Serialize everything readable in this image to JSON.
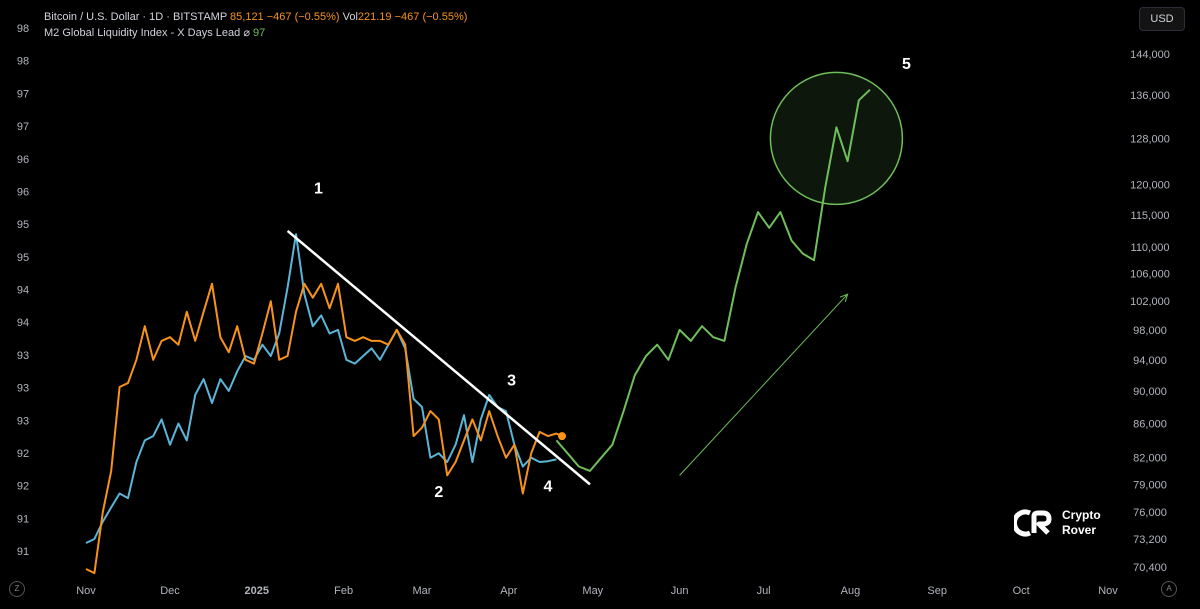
{
  "header": {
    "symbol": "Bitcoin / U.S. Dollar · 1D · BITSTAMP",
    "price": "85,121",
    "change": "−467 (−0.55%)",
    "vol_label": "Vol",
    "vol_value": "221.19",
    "vol_change": "−467 (−0.55%)",
    "indicator": "M2 Global Liquidity Index - X Days Lead",
    "indicator_symbol": "⌀",
    "indicator_value": "97"
  },
  "currency_button": "USD",
  "logo": {
    "line1": "Crypto",
    "line2": "Rover"
  },
  "corner_left": "Z",
  "corner_right": "A",
  "colors": {
    "btc": "#f7931a",
    "btc_blue": "#5bb5d9",
    "m2_projection": "#6fbf5a",
    "annotation": "#ffffff"
  },
  "chart_data": {
    "type": "line",
    "x_ticks": [
      "Nov",
      "Dec",
      "2025",
      "Feb",
      "Mar",
      "Apr",
      "May",
      "Jun",
      "Jul",
      "Aug",
      "Sep",
      "Oct",
      "Nov"
    ],
    "left_axis_ticks": [
      "98",
      "98",
      "97",
      "97",
      "96",
      "96",
      "95",
      "95",
      "94",
      "94",
      "93",
      "93",
      "93",
      "92",
      "92",
      "91",
      "91"
    ],
    "right_axis_ticks": [
      "144,000",
      "136,000",
      "128,000",
      "120,000",
      "115,000",
      "110,000",
      "106,000",
      "102,000",
      "98,000",
      "94,000",
      "90,000",
      "86,000",
      "82,000",
      "79,000",
      "76,000",
      "73,200",
      "70,400"
    ],
    "right_axis_scale": "log",
    "wave_labels": [
      "1",
      "2",
      "3",
      "4",
      "5"
    ],
    "series": [
      {
        "name": "Bitcoin / U.S. Dollar",
        "color": "#f7931a",
        "x": [
          "2024-11-01",
          "2024-11-04",
          "2024-11-07",
          "2024-11-10",
          "2024-11-13",
          "2024-11-16",
          "2024-11-19",
          "2024-11-22",
          "2024-11-25",
          "2024-11-28",
          "2024-12-01",
          "2024-12-04",
          "2024-12-07",
          "2024-12-10",
          "2024-12-13",
          "2024-12-16",
          "2024-12-19",
          "2024-12-22",
          "2024-12-25",
          "2024-12-28",
          "2024-12-31",
          "2025-01-03",
          "2025-01-06",
          "2025-01-09",
          "2025-01-12",
          "2025-01-15",
          "2025-01-18",
          "2025-01-21",
          "2025-01-24",
          "2025-01-27",
          "2025-01-30",
          "2025-02-02",
          "2025-02-05",
          "2025-02-08",
          "2025-02-11",
          "2025-02-14",
          "2025-02-17",
          "2025-02-20",
          "2025-02-23",
          "2025-02-26",
          "2025-03-01",
          "2025-03-04",
          "2025-03-07",
          "2025-03-10",
          "2025-03-13",
          "2025-03-16",
          "2025-03-19",
          "2025-03-22",
          "2025-03-25",
          "2025-03-28",
          "2025-03-31",
          "2025-04-03",
          "2025-04-06",
          "2025-04-09",
          "2025-04-12",
          "2025-04-15",
          "2025-04-18",
          "2025-04-20"
        ],
        "y": [
          70200,
          69800,
          76000,
          80500,
          90500,
          91000,
          94000,
          98500,
          94000,
          96500,
          97000,
          96000,
          100500,
          96500,
          100500,
          104500,
          97000,
          95000,
          98500,
          94000,
          93500,
          97500,
          102000,
          94000,
          94500,
          100500,
          104500,
          102500,
          104500,
          101000,
          104500,
          97000,
          96500,
          97000,
          96500,
          96500,
          96000,
          98000,
          96000,
          84500,
          85500,
          87500,
          86500,
          80000,
          81500,
          84000,
          86500,
          84000,
          87500,
          84500,
          82000,
          83500,
          78000,
          82500,
          85000,
          84500,
          84800,
          84500
        ]
      },
      {
        "name": "M2 Global Liquidity Index - X Days Lead",
        "color": "#5bb5d9",
        "x": [
          "2024-11-01",
          "2024-11-04",
          "2024-11-07",
          "2024-11-10",
          "2024-11-13",
          "2024-11-16",
          "2024-11-19",
          "2024-11-22",
          "2024-11-25",
          "2024-11-28",
          "2024-12-01",
          "2024-12-04",
          "2024-12-07",
          "2024-12-10",
          "2024-12-13",
          "2024-12-16",
          "2024-12-19",
          "2024-12-22",
          "2024-12-25",
          "2024-12-28",
          "2024-12-31",
          "2025-01-03",
          "2025-01-06",
          "2025-01-09",
          "2025-01-12",
          "2025-01-15",
          "2025-01-18",
          "2025-01-21",
          "2025-01-24",
          "2025-01-27",
          "2025-01-30",
          "2025-02-02",
          "2025-02-05",
          "2025-02-08",
          "2025-02-11",
          "2025-02-14",
          "2025-02-17",
          "2025-02-20",
          "2025-02-23",
          "2025-02-26",
          "2025-03-01",
          "2025-03-04",
          "2025-03-07",
          "2025-03-10",
          "2025-03-13",
          "2025-03-16",
          "2025-03-19",
          "2025-03-22",
          "2025-03-25",
          "2025-03-28",
          "2025-03-31",
          "2025-04-03",
          "2025-04-06",
          "2025-04-09",
          "2025-04-12",
          "2025-04-15",
          "2025-04-18"
        ],
        "y": [
          72800,
          73200,
          75000,
          76500,
          78000,
          77500,
          81500,
          84000,
          84500,
          86500,
          83500,
          86000,
          84000,
          89500,
          91500,
          88500,
          91500,
          90000,
          92500,
          94500,
          94000,
          96000,
          94500,
          97500,
          104000,
          112000,
          103000,
          98500,
          100000,
          97500,
          98000,
          94000,
          93500,
          94500,
          95500,
          94000,
          96000,
          98000,
          95500,
          89000,
          88000,
          82000,
          82500,
          81500,
          83500,
          87000,
          81500,
          86500,
          89500,
          88000,
          87500,
          83500,
          81000,
          82000,
          81500,
          81600,
          81800
        ]
      },
      {
        "name": "M2 Global Liquidity Index - X Days Lead (projection)",
        "color": "#6fbf5a",
        "x": [
          "2025-04-18",
          "2025-04-22",
          "2025-04-26",
          "2025-04-30",
          "2025-05-04",
          "2025-05-08",
          "2025-05-12",
          "2025-05-16",
          "2025-05-20",
          "2025-05-24",
          "2025-05-28",
          "2025-06-01",
          "2025-06-05",
          "2025-06-09",
          "2025-06-13",
          "2025-06-17",
          "2025-06-21",
          "2025-06-25",
          "2025-06-29",
          "2025-07-03",
          "2025-07-07",
          "2025-07-11",
          "2025-07-15",
          "2025-07-19",
          "2025-07-23",
          "2025-07-27",
          "2025-07-31",
          "2025-08-04",
          "2025-08-08"
        ],
        "y": [
          84000,
          82500,
          81000,
          80500,
          82000,
          83500,
          87500,
          92000,
          94500,
          96000,
          94000,
          98000,
          96500,
          98500,
          97000,
          96500,
          104000,
          110500,
          115500,
          113000,
          115500,
          111000,
          109000,
          108000,
          119500,
          130000,
          124000,
          135000,
          137000
        ]
      }
    ],
    "trendline": {
      "x": [
        "2025-01-12",
        "2025-04-30"
      ],
      "y": [
        112500,
        79000
      ]
    },
    "projection_arrow": {
      "x": [
        "2025-06-01",
        "2025-07-31"
      ],
      "y": [
        80000,
        103000
      ]
    },
    "highlight_circle_center": {
      "x": "2025-07-27",
      "y": 128000
    }
  }
}
